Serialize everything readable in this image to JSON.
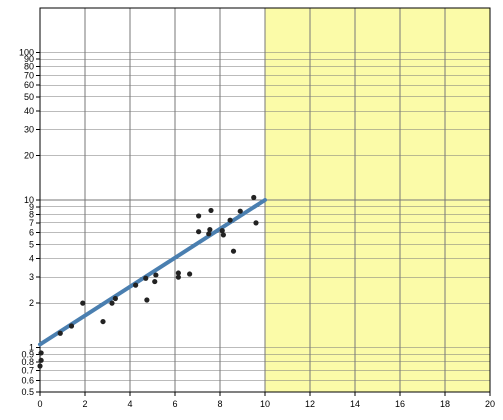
{
  "chart_data": {
    "type": "scatter",
    "title": "",
    "xlabel": "",
    "ylabel": "",
    "y_scale": "log",
    "xlim": [
      0,
      20
    ],
    "ylim": [
      0.5,
      200
    ],
    "grid": true,
    "x_ticks": [
      0,
      2,
      4,
      6,
      8,
      10,
      12,
      14,
      16,
      18,
      20
    ],
    "x_tick_labels": [
      "0",
      "2",
      "4",
      "6",
      "8",
      "10",
      "12",
      "14",
      "16",
      "18",
      "20"
    ],
    "y_ticks": [
      0.5,
      0.6,
      0.7,
      0.8,
      0.9,
      1,
      2,
      3,
      4,
      5,
      6,
      7,
      8,
      9,
      10,
      20,
      30,
      40,
      50,
      60,
      70,
      80,
      90,
      100
    ],
    "y_tick_labels": [
      "0.5",
      "0.6",
      "0.7",
      "0.8",
      "0.9",
      "1",
      "2",
      "3",
      "4",
      "5",
      "6",
      "7",
      "8",
      "9",
      "10",
      "20",
      "30",
      "40",
      "50",
      "60",
      "70",
      "80",
      "90",
      "100"
    ],
    "highlight_region": {
      "x_from": 10,
      "x_to": 20,
      "color": "#fbfba8"
    },
    "points_color": "#222222",
    "fit_line": {
      "x": [
        0,
        10
      ],
      "y": [
        1.05,
        10
      ],
      "color": "#4a7fb0"
    },
    "points": [
      {
        "x": 0.0,
        "y": 0.75
      },
      {
        "x": 0.05,
        "y": 0.82
      },
      {
        "x": 0.05,
        "y": 0.92
      },
      {
        "x": 0.9,
        "y": 1.25
      },
      {
        "x": 1.4,
        "y": 1.4
      },
      {
        "x": 1.9,
        "y": 2.0
      },
      {
        "x": 2.8,
        "y": 1.5
      },
      {
        "x": 3.2,
        "y": 2.0
      },
      {
        "x": 3.35,
        "y": 2.15
      },
      {
        "x": 4.25,
        "y": 2.65
      },
      {
        "x": 4.7,
        "y": 2.95
      },
      {
        "x": 4.75,
        "y": 2.1
      },
      {
        "x": 5.1,
        "y": 2.8
      },
      {
        "x": 5.15,
        "y": 3.1
      },
      {
        "x": 6.15,
        "y": 3.0
      },
      {
        "x": 6.15,
        "y": 3.2
      },
      {
        "x": 6.65,
        "y": 3.15
      },
      {
        "x": 7.05,
        "y": 6.1
      },
      {
        "x": 7.05,
        "y": 7.8
      },
      {
        "x": 7.5,
        "y": 5.9
      },
      {
        "x": 7.55,
        "y": 6.3
      },
      {
        "x": 7.6,
        "y": 8.5
      },
      {
        "x": 8.1,
        "y": 6.2
      },
      {
        "x": 8.15,
        "y": 5.8
      },
      {
        "x": 8.45,
        "y": 7.3
      },
      {
        "x": 8.6,
        "y": 4.5
      },
      {
        "x": 8.9,
        "y": 8.4
      },
      {
        "x": 9.5,
        "y": 10.4
      },
      {
        "x": 9.6,
        "y": 7.0
      }
    ]
  }
}
